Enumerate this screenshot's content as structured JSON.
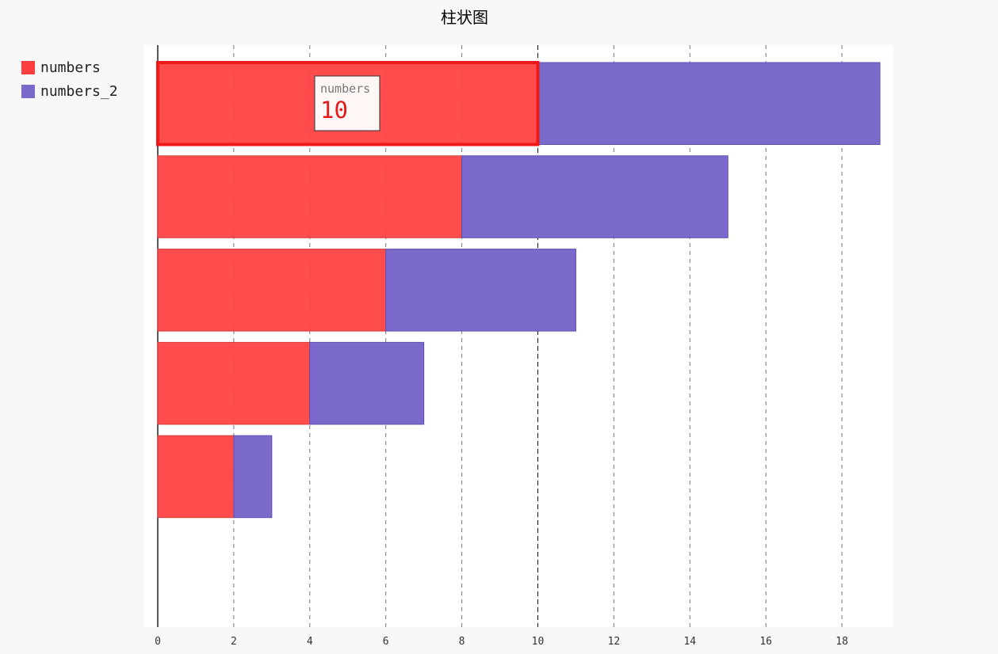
{
  "chart_data": {
    "type": "bar",
    "orientation": "horizontal",
    "stacked": true,
    "title": "柱状图",
    "xlabel": "",
    "ylabel": "",
    "xlim": [
      0,
      19
    ],
    "x_ticks": [
      0,
      2,
      4,
      6,
      8,
      10,
      12,
      14,
      16,
      18
    ],
    "grid": "vertical dashed",
    "legend_placement": "top-left",
    "series": [
      {
        "name": "numbers",
        "color": "#ff3f3f",
        "values": [
          10,
          8,
          6,
          4,
          2
        ]
      },
      {
        "name": "numbers_2",
        "color": "#7b6acb",
        "values": [
          9,
          7,
          5,
          3,
          1
        ]
      }
    ],
    "tooltip": {
      "series": "numbers",
      "value": "10",
      "bar_index": 0
    },
    "highlight_line": {
      "x": 10
    }
  }
}
